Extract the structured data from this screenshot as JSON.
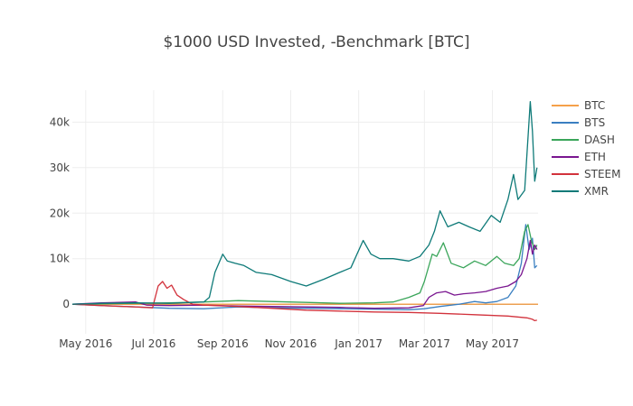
{
  "chart_data": {
    "type": "line",
    "title": "$1000 USD Invested, -Benchmark [BTC]",
    "xlabel": "",
    "ylabel": "",
    "x_range": [
      "2016-04-19",
      "2017-06-11"
    ],
    "ylim": [
      -6500,
      47000
    ],
    "x_ticks": [
      {
        "date": "2016-05-01",
        "label": "May 2016"
      },
      {
        "date": "2016-07-01",
        "label": "Jul 2016"
      },
      {
        "date": "2016-09-01",
        "label": "Sep 2016"
      },
      {
        "date": "2016-11-01",
        "label": "Nov 2016"
      },
      {
        "date": "2017-01-01",
        "label": "Jan 2017"
      },
      {
        "date": "2017-03-01",
        "label": "Mar 2017"
      },
      {
        "date": "2017-05-01",
        "label": "May 2017"
      }
    ],
    "y_ticks": [
      {
        "value": 0,
        "label": "0"
      },
      {
        "value": 10000,
        "label": "10k"
      },
      {
        "value": 20000,
        "label": "20k"
      },
      {
        "value": 30000,
        "label": "30k"
      },
      {
        "value": 40000,
        "label": "40k"
      }
    ],
    "grid": true,
    "legend_position": "top-right",
    "series": [
      {
        "name": "BTC",
        "color": "#f5a04a",
        "points": [
          [
            "2016-04-19",
            0
          ],
          [
            "2017-06-11",
            0
          ]
        ]
      },
      {
        "name": "BTS",
        "color": "#3a7fc1",
        "points": [
          [
            "2016-04-19",
            0
          ],
          [
            "2016-05-15",
            -300
          ],
          [
            "2016-06-15",
            -600
          ],
          [
            "2016-07-15",
            -900
          ],
          [
            "2016-08-15",
            -1000
          ],
          [
            "2016-09-15",
            -600
          ],
          [
            "2016-10-15",
            -800
          ],
          [
            "2016-11-15",
            -900
          ],
          [
            "2016-12-15",
            -1000
          ],
          [
            "2017-01-15",
            -1100
          ],
          [
            "2017-02-15",
            -1200
          ],
          [
            "2017-03-01",
            -1000
          ],
          [
            "2017-03-15",
            -500
          ],
          [
            "2017-04-01",
            0
          ],
          [
            "2017-04-15",
            600
          ],
          [
            "2017-04-25",
            300
          ],
          [
            "2017-05-05",
            600
          ],
          [
            "2017-05-15",
            1500
          ],
          [
            "2017-05-22",
            4000
          ],
          [
            "2017-05-27",
            9000
          ],
          [
            "2017-05-31",
            17500
          ],
          [
            "2017-06-03",
            12000
          ],
          [
            "2017-06-06",
            14500
          ],
          [
            "2017-06-08",
            8000
          ],
          [
            "2017-06-10",
            8500
          ]
        ]
      },
      {
        "name": "DASH",
        "color": "#3aa55a",
        "points": [
          [
            "2016-04-19",
            0
          ],
          [
            "2016-05-15",
            100
          ],
          [
            "2016-06-15",
            200
          ],
          [
            "2016-07-15",
            300
          ],
          [
            "2016-08-15",
            500
          ],
          [
            "2016-09-15",
            800
          ],
          [
            "2016-10-15",
            600
          ],
          [
            "2016-11-15",
            400
          ],
          [
            "2016-12-15",
            200
          ],
          [
            "2017-01-15",
            300
          ],
          [
            "2017-02-01",
            500
          ],
          [
            "2017-02-15",
            1500
          ],
          [
            "2017-02-25",
            2500
          ],
          [
            "2017-03-01",
            5000
          ],
          [
            "2017-03-08",
            11000
          ],
          [
            "2017-03-12",
            10500
          ],
          [
            "2017-03-18",
            13500
          ],
          [
            "2017-03-25",
            9000
          ],
          [
            "2017-04-05",
            8000
          ],
          [
            "2017-04-15",
            9500
          ],
          [
            "2017-04-25",
            8500
          ],
          [
            "2017-05-05",
            10500
          ],
          [
            "2017-05-12",
            9000
          ],
          [
            "2017-05-20",
            8500
          ],
          [
            "2017-05-25",
            10000
          ],
          [
            "2017-05-30",
            16000
          ],
          [
            "2017-06-02",
            17500
          ],
          [
            "2017-06-05",
            14000
          ],
          [
            "2017-06-08",
            12000
          ],
          [
            "2017-06-10",
            13000
          ]
        ]
      },
      {
        "name": "ETH",
        "color": "#7a1690",
        "points": [
          [
            "2016-04-19",
            0
          ],
          [
            "2016-05-15",
            300
          ],
          [
            "2016-06-15",
            500
          ],
          [
            "2016-06-25",
            -200
          ],
          [
            "2016-07-15",
            -300
          ],
          [
            "2016-08-15",
            -200
          ],
          [
            "2016-09-15",
            -400
          ],
          [
            "2016-10-15",
            -500
          ],
          [
            "2016-11-15",
            -600
          ],
          [
            "2016-12-15",
            -700
          ],
          [
            "2017-01-15",
            -900
          ],
          [
            "2017-02-15",
            -800
          ],
          [
            "2017-02-28",
            -300
          ],
          [
            "2017-03-05",
            1500
          ],
          [
            "2017-03-12",
            2500
          ],
          [
            "2017-03-20",
            2800
          ],
          [
            "2017-03-28",
            2000
          ],
          [
            "2017-04-05",
            2300
          ],
          [
            "2017-04-15",
            2500
          ],
          [
            "2017-04-25",
            2800
          ],
          [
            "2017-05-05",
            3500
          ],
          [
            "2017-05-15",
            4000
          ],
          [
            "2017-05-22",
            5000
          ],
          [
            "2017-05-27",
            6500
          ],
          [
            "2017-06-01",
            10000
          ],
          [
            "2017-06-04",
            14000
          ],
          [
            "2017-06-06",
            11000
          ],
          [
            "2017-06-08",
            13000
          ],
          [
            "2017-06-10",
            12000
          ]
        ]
      },
      {
        "name": "STEEM",
        "color": "#d2323c",
        "points": [
          [
            "2016-04-19",
            0
          ],
          [
            "2016-05-15",
            -300
          ],
          [
            "2016-06-15",
            -600
          ],
          [
            "2016-06-30",
            -800
          ],
          [
            "2016-07-05",
            4000
          ],
          [
            "2016-07-09",
            5000
          ],
          [
            "2016-07-13",
            3500
          ],
          [
            "2016-07-17",
            4200
          ],
          [
            "2016-07-22",
            2000
          ],
          [
            "2016-07-28",
            1000
          ],
          [
            "2016-08-05",
            0
          ],
          [
            "2016-08-15",
            -200
          ],
          [
            "2016-09-15",
            -500
          ],
          [
            "2016-10-15",
            -900
          ],
          [
            "2016-11-15",
            -1300
          ],
          [
            "2016-12-15",
            -1500
          ],
          [
            "2017-01-15",
            -1700
          ],
          [
            "2017-02-15",
            -1800
          ],
          [
            "2017-03-15",
            -2000
          ],
          [
            "2017-04-15",
            -2300
          ],
          [
            "2017-05-15",
            -2600
          ],
          [
            "2017-06-01",
            -3000
          ],
          [
            "2017-06-06",
            -3300
          ],
          [
            "2017-06-08",
            -3600
          ],
          [
            "2017-06-10",
            -3500
          ]
        ]
      },
      {
        "name": "XMR",
        "color": "#0e7a78",
        "points": [
          [
            "2016-04-19",
            0
          ],
          [
            "2016-05-15",
            200
          ],
          [
            "2016-06-15",
            300
          ],
          [
            "2016-07-15",
            200
          ],
          [
            "2016-08-15",
            500
          ],
          [
            "2016-08-20",
            1500
          ],
          [
            "2016-08-25",
            7000
          ],
          [
            "2016-09-01",
            11000
          ],
          [
            "2016-09-05",
            9500
          ],
          [
            "2016-09-12",
            9000
          ],
          [
            "2016-09-20",
            8500
          ],
          [
            "2016-10-01",
            7000
          ],
          [
            "2016-10-15",
            6500
          ],
          [
            "2016-11-01",
            5000
          ],
          [
            "2016-11-15",
            4000
          ],
          [
            "2016-12-01",
            5500
          ],
          [
            "2016-12-15",
            7000
          ],
          [
            "2016-12-25",
            8000
          ],
          [
            "2017-01-05",
            14000
          ],
          [
            "2017-01-12",
            11000
          ],
          [
            "2017-01-20",
            10000
          ],
          [
            "2017-02-01",
            10000
          ],
          [
            "2017-02-15",
            9500
          ],
          [
            "2017-02-25",
            10500
          ],
          [
            "2017-03-05",
            13000
          ],
          [
            "2017-03-10",
            16000
          ],
          [
            "2017-03-15",
            20500
          ],
          [
            "2017-03-22",
            17000
          ],
          [
            "2017-04-01",
            18000
          ],
          [
            "2017-04-10",
            17000
          ],
          [
            "2017-04-20",
            16000
          ],
          [
            "2017-04-30",
            19500
          ],
          [
            "2017-05-08",
            18000
          ],
          [
            "2017-05-15",
            23000
          ],
          [
            "2017-05-20",
            28500
          ],
          [
            "2017-05-24",
            23000
          ],
          [
            "2017-05-30",
            25000
          ],
          [
            "2017-06-04",
            44500
          ],
          [
            "2017-06-06",
            38000
          ],
          [
            "2017-06-08",
            27000
          ],
          [
            "2017-06-10",
            30000
          ]
        ]
      }
    ]
  }
}
